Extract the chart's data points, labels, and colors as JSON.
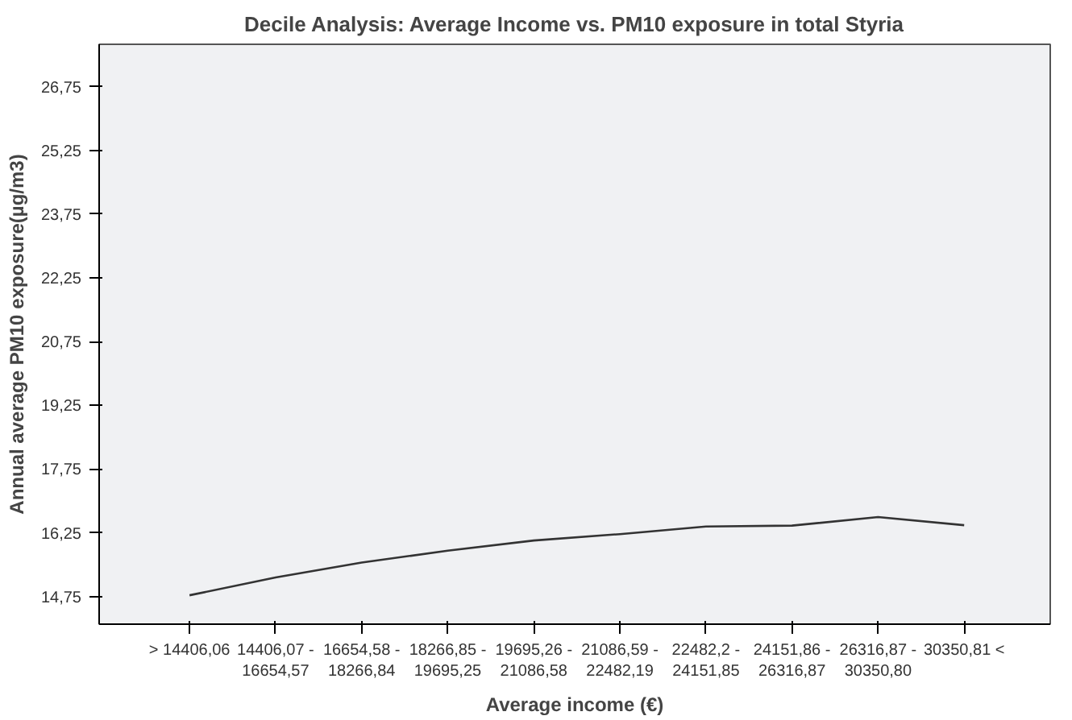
{
  "chart_data": {
    "type": "line",
    "title": "Decile Analysis: Average Income vs. PM10 exposure in total Styria",
    "xlabel": "Average income (€)",
    "ylabel": "Annual average PM10 exposure(µg/m3)",
    "categories": [
      "> 14406,06",
      "14406,07 -\n16654,57",
      "16654,58 -\n18266,84",
      "18266,85 -\n19695,25",
      "19695,26 -\n21086,58",
      "21086,59 -\n22482,19",
      "22482,2 -\n24151,85",
      "24151,86 -\n26316,87",
      "26316,87 -\n30350,80",
      "30350,81 <"
    ],
    "series": [
      {
        "color": "#333333",
        "values": [
          14.78,
          15.2,
          15.55,
          15.83,
          16.07,
          16.22,
          16.4,
          16.42,
          16.62,
          16.43
        ]
      }
    ],
    "ylim": [
      14.1,
      27.75
    ],
    "yticks": [
      {
        "value": 14.75,
        "label": "14,75"
      },
      {
        "value": 16.25,
        "label": "16,25"
      },
      {
        "value": 17.75,
        "label": "17,75"
      },
      {
        "value": 19.25,
        "label": "19,25"
      },
      {
        "value": 20.75,
        "label": "20,75"
      },
      {
        "value": 22.25,
        "label": "22,25"
      },
      {
        "value": 23.75,
        "label": "23,75"
      },
      {
        "value": 25.25,
        "label": "25,25"
      },
      {
        "value": 26.75,
        "label": "26,75"
      }
    ],
    "grid": false,
    "marker": "none",
    "line_style": "solid"
  }
}
